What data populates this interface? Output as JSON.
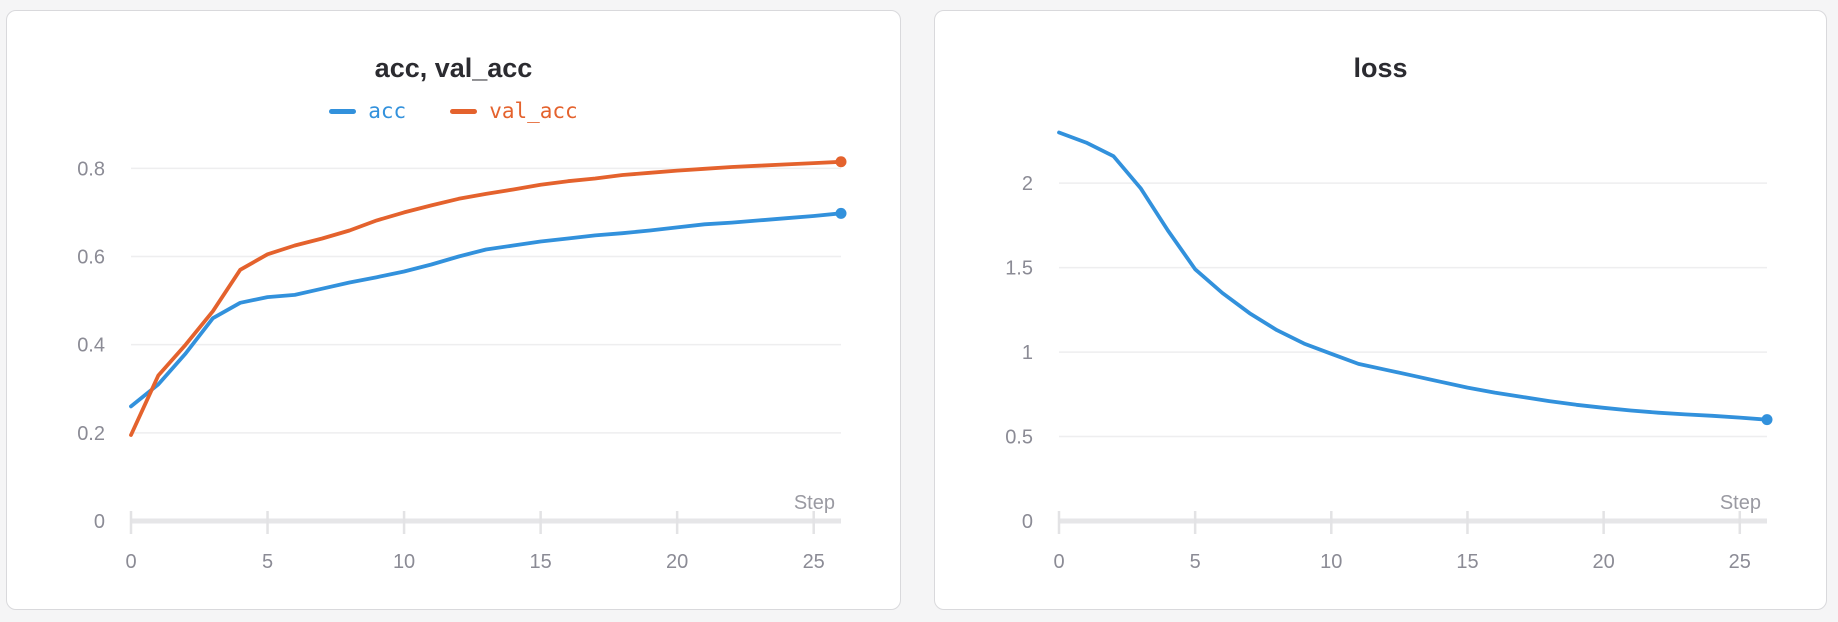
{
  "page": {
    "background": "#f5f5f6",
    "panel_background": "#ffffff",
    "panel_border": "#d9d9dc"
  },
  "colors": {
    "blue": "#3291dc",
    "orange": "#e4622d",
    "grid": "#eeeeef",
    "axis_line": "#e6e6e8",
    "tick_mark": "#e3e3e5",
    "tick_text": "#8b8b95",
    "title_text": "#2b2b30"
  },
  "chart_data": [
    {
      "type": "line",
      "title": "acc, val_acc",
      "xlabel": "Step",
      "ylabel": "",
      "legend_position": "top",
      "grid": true,
      "xlim": [
        0,
        26
      ],
      "ylim": [
        0,
        0.912
      ],
      "x_ticks": [
        {
          "v": 0,
          "label": "0"
        },
        {
          "v": 5,
          "label": "5"
        },
        {
          "v": 10,
          "label": "10"
        },
        {
          "v": 15,
          "label": "15"
        },
        {
          "v": 20,
          "label": "20"
        },
        {
          "v": 25,
          "label": "25"
        }
      ],
      "y_ticks": [
        {
          "v": 0,
          "label": "0"
        },
        {
          "v": 0.2,
          "label": "0.2"
        },
        {
          "v": 0.4,
          "label": "0.4"
        },
        {
          "v": 0.6,
          "label": "0.6"
        },
        {
          "v": 0.8,
          "label": "0.8"
        }
      ],
      "x": [
        0,
        1,
        2,
        3,
        4,
        5,
        6,
        7,
        8,
        9,
        10,
        11,
        12,
        13,
        14,
        15,
        16,
        17,
        18,
        19,
        20,
        21,
        22,
        23,
        24,
        25,
        26
      ],
      "series": [
        {
          "name": "acc",
          "color": "#3291dc",
          "end_point_dot": true,
          "values": [
            0.26,
            0.31,
            0.38,
            0.46,
            0.495,
            0.508,
            0.513,
            0.527,
            0.541,
            0.553,
            0.566,
            0.582,
            0.6,
            0.616,
            0.625,
            0.634,
            0.641,
            0.648,
            0.653,
            0.659,
            0.666,
            0.673,
            0.677,
            0.682,
            0.687,
            0.692,
            0.698
          ]
        },
        {
          "name": "val_acc",
          "color": "#e4622d",
          "end_point_dot": true,
          "values": [
            0.195,
            0.33,
            0.4,
            0.476,
            0.57,
            0.605,
            0.625,
            0.641,
            0.659,
            0.682,
            0.7,
            0.716,
            0.731,
            0.742,
            0.752,
            0.763,
            0.771,
            0.777,
            0.785,
            0.79,
            0.795,
            0.799,
            0.803,
            0.806,
            0.809,
            0.812,
            0.815
          ]
        }
      ]
    },
    {
      "type": "line",
      "title": "loss",
      "xlabel": "Step",
      "ylabel": "",
      "legend_position": "none",
      "grid": true,
      "xlim": [
        0,
        26
      ],
      "ylim": [
        0,
        2.38
      ],
      "x_ticks": [
        {
          "v": 0,
          "label": "0"
        },
        {
          "v": 5,
          "label": "5"
        },
        {
          "v": 10,
          "label": "10"
        },
        {
          "v": 15,
          "label": "15"
        },
        {
          "v": 20,
          "label": "20"
        },
        {
          "v": 25,
          "label": "25"
        }
      ],
      "y_ticks": [
        {
          "v": 0,
          "label": "0"
        },
        {
          "v": 0.5,
          "label": "0.5"
        },
        {
          "v": 1,
          "label": "1"
        },
        {
          "v": 1.5,
          "label": "1.5"
        },
        {
          "v": 2,
          "label": "2"
        }
      ],
      "x": [
        0,
        1,
        2,
        3,
        4,
        5,
        6,
        7,
        8,
        9,
        10,
        11,
        12,
        13,
        14,
        15,
        16,
        17,
        18,
        19,
        20,
        21,
        22,
        23,
        24,
        25,
        26
      ],
      "series": [
        {
          "name": "loss",
          "color": "#3291dc",
          "end_point_dot": true,
          "values": [
            2.3,
            2.24,
            2.16,
            1.97,
            1.72,
            1.49,
            1.35,
            1.23,
            1.13,
            1.05,
            0.99,
            0.93,
            0.895,
            0.86,
            0.825,
            0.79,
            0.76,
            0.735,
            0.71,
            0.688,
            0.67,
            0.654,
            0.641,
            0.631,
            0.623,
            0.612,
            0.6
          ]
        }
      ]
    }
  ]
}
